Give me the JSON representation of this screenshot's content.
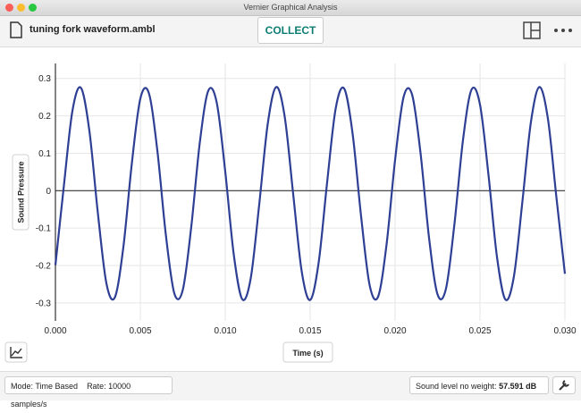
{
  "window": {
    "title": "Vernier Graphical Analysis"
  },
  "toolbar": {
    "file_name": "tuning fork waveform.ambl",
    "collect_button": "COLLECT"
  },
  "chart_data": {
    "type": "line",
    "x_label": "Time (s)",
    "y_label": "Sound Pressure",
    "x": [
      0,
      0.0005,
      0.001,
      0.0015,
      0.002,
      0.0025,
      0.003,
      0.0035,
      0.004,
      0.0045,
      0.005,
      0.0055,
      0.006,
      0.0065,
      0.007,
      0.0075,
      0.008,
      0.0085,
      0.009,
      0.0095,
      0.01,
      0.0105,
      0.011,
      0.0115,
      0.012,
      0.0125,
      0.013,
      0.0135,
      0.014,
      0.0145,
      0.015,
      0.0155,
      0.016,
      0.0165,
      0.017,
      0.0175,
      0.018,
      0.0185,
      0.019,
      0.0195,
      0.02,
      0.0205,
      0.021,
      0.0215,
      0.022,
      0.0225,
      0.023,
      0.0235,
      0.024,
      0.0245,
      0.025,
      0.0255,
      0.026,
      0.0265,
      0.027,
      0.0275,
      0.028,
      0.0285,
      0.029,
      0.0295,
      0.03
    ],
    "values": [
      -0.199,
      0.014,
      0.213,
      0.275,
      0.16,
      -0.06,
      -0.247,
      -0.285,
      -0.151,
      0.073,
      0.246,
      0.261,
      0.108,
      -0.117,
      -0.274,
      -0.265,
      -0.096,
      0.128,
      0.267,
      0.235,
      0.051,
      -0.17,
      -0.29,
      -0.234,
      -0.037,
      0.178,
      0.277,
      0.198,
      -0.009,
      -0.215,
      -0.292,
      -0.192,
      0.023,
      0.219,
      0.273,
      0.152,
      -0.069,
      -0.252,
      -0.283,
      -0.143,
      0.082,
      0.25,
      0.257,
      0.1,
      -0.126,
      -0.277,
      -0.261,
      -0.087,
      0.136,
      0.27,
      0.23,
      0.042,
      -0.177,
      -0.291,
      -0.228,
      -0.028,
      0.184,
      0.277,
      0.192,
      -0.018,
      -0.222
    ],
    "color": "#2e3f94",
    "xlim": [
      0,
      0.03
    ],
    "ylim": [
      -0.348,
      0.34
    ],
    "xticks": [
      {
        "value": 0,
        "label": "0.000"
      },
      {
        "value": 0.005,
        "label": "0.005"
      },
      {
        "value": 0.01,
        "label": "0.010"
      },
      {
        "value": 0.015,
        "label": "0.015"
      },
      {
        "value": 0.02,
        "label": "0.020"
      },
      {
        "value": 0.025,
        "label": "0.025"
      },
      {
        "value": 0.03,
        "label": "0.030"
      }
    ],
    "yticks": [
      0.3,
      0.2,
      0.1,
      0,
      -0.1,
      -0.2,
      -0.3
    ],
    "grid": true
  },
  "status_bar": {
    "mode": "Mode: Time Based",
    "rate": "Rate: 10000 samples/s",
    "sound_level_label": "Sound level no weight:",
    "sound_level_value": "57.591 dB"
  }
}
